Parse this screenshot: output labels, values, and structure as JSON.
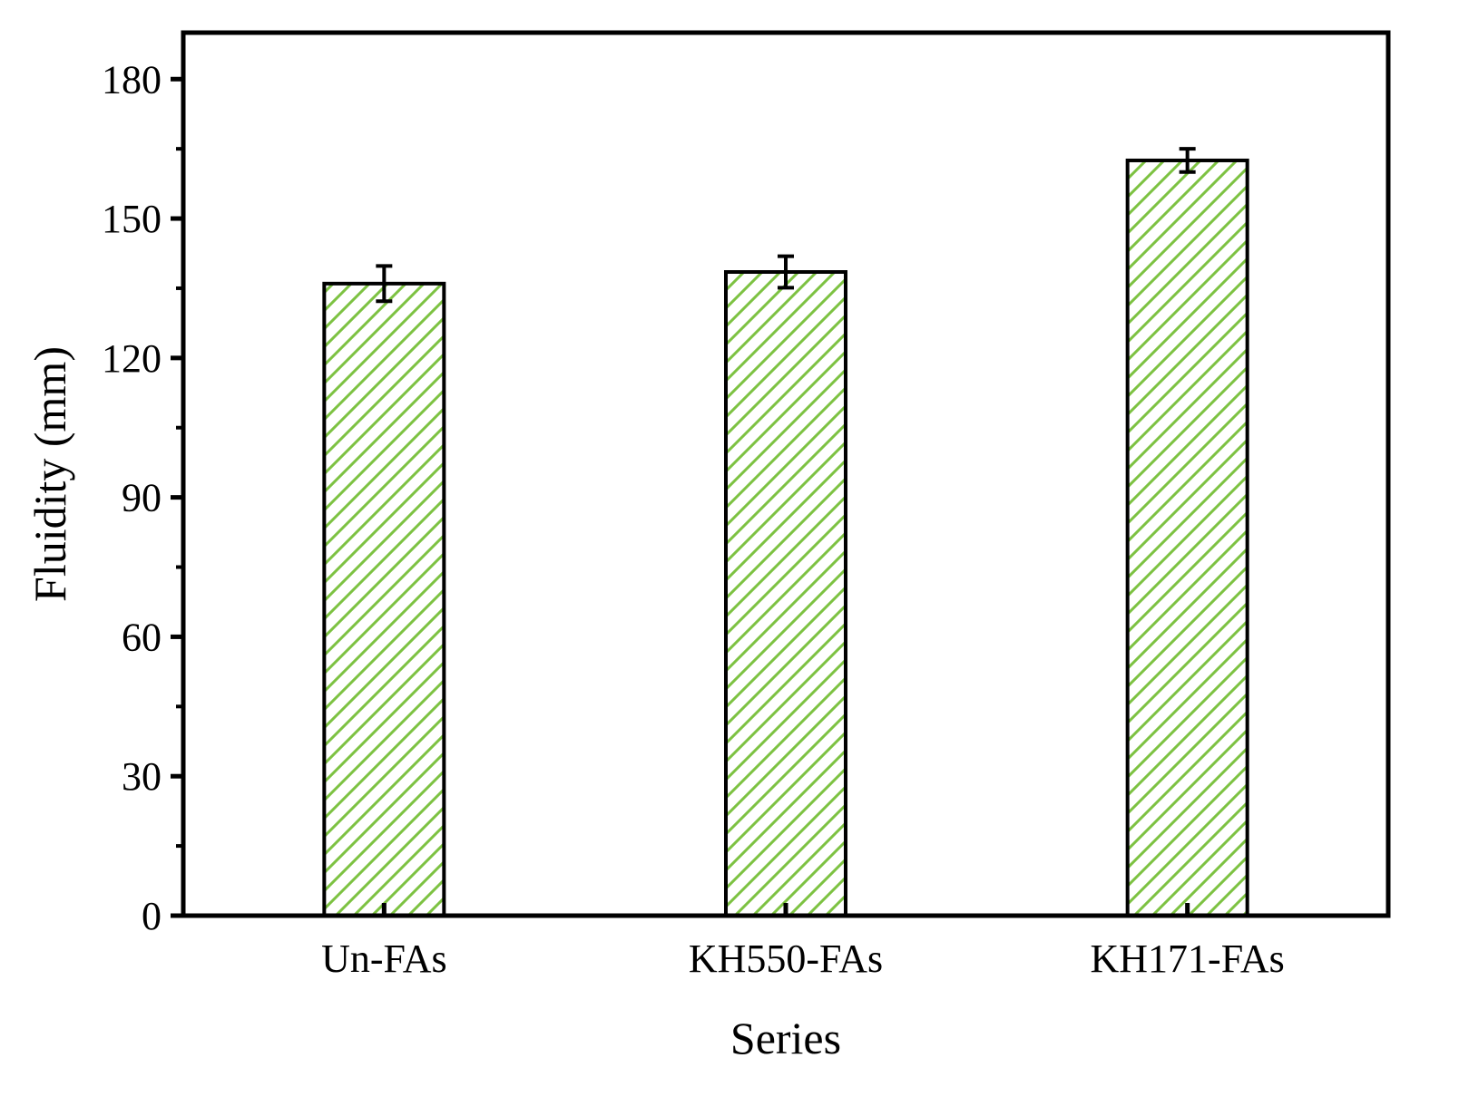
{
  "chart_data": {
    "type": "bar",
    "title": "",
    "xlabel": "Series",
    "ylabel": "Fluidity (mm)",
    "categories": [
      "Un-FAs",
      "KH550-FAs",
      "KH171-FAs"
    ],
    "values": [
      136,
      138.5,
      162.5
    ],
    "errors": [
      3.8,
      3.4,
      2.5
    ],
    "ylim": [
      0,
      190
    ],
    "yticks": [
      0,
      30,
      60,
      90,
      120,
      150,
      180
    ],
    "ytick_labels": [
      "0",
      "30",
      "60",
      "90",
      "120",
      "150",
      "180"
    ],
    "grid": false,
    "legend": "none",
    "bar_fill": "#ffffff",
    "hatch_color": "#7dc242",
    "edge_color": "#000000"
  }
}
